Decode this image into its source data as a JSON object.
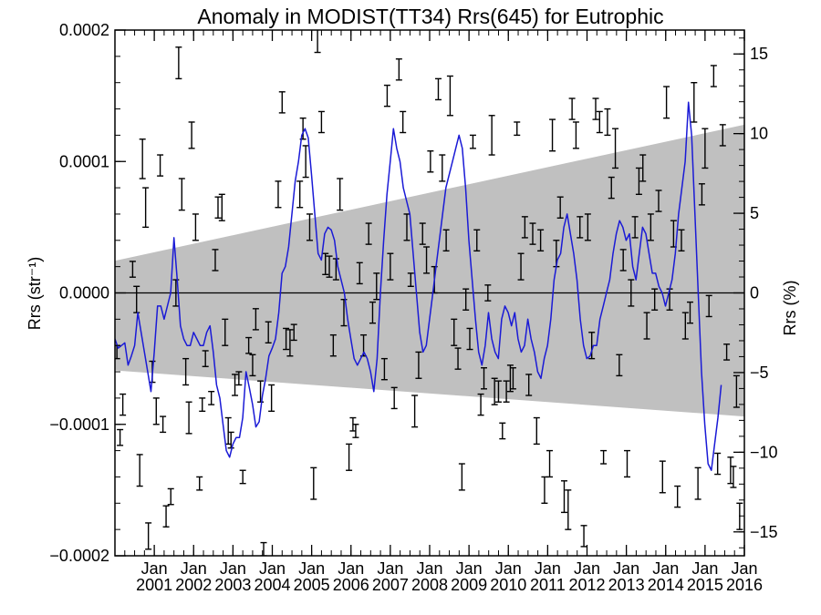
{
  "chart_data": {
    "type": "line",
    "title": "Anomaly in MODIST(TT34) Rrs(645) for Eutrophic",
    "ylabel": "Rrs (str⁻¹)",
    "y2label": "Rrs (%)",
    "xlim": [
      2000.0,
      2016.0
    ],
    "ylim": [
      -0.0002,
      0.0002
    ],
    "y2lim": [
      -16.5,
      16.5
    ],
    "y_ticks": [
      -0.0002,
      -0.0001,
      0.0,
      0.0001,
      0.0002
    ],
    "y_tick_labels": [
      "−0.0002",
      "−0.0001",
      "0.0000",
      "0.0001",
      "0.0002"
    ],
    "y2_ticks": [
      -15,
      -10,
      -5,
      0,
      5,
      10,
      15
    ],
    "y2_tick_labels": [
      "−15",
      "−10",
      "−5",
      "0",
      "5",
      "10",
      "15"
    ],
    "x_ticks": [
      2001.0,
      2002.0,
      2003.0,
      2004.0,
      2005.0,
      2006.0,
      2007.0,
      2008.0,
      2009.0,
      2010.0,
      2011.0,
      2012.0,
      2013.0,
      2014.0,
      2015.0,
      2016.0
    ],
    "x_tick_month_labels": [
      "Jan",
      "Jan",
      "Jan",
      "Jan",
      "Jan",
      "Jan",
      "Jan",
      "Jan",
      "Jan",
      "Jan",
      "Jan",
      "Jan",
      "Jan",
      "Jan",
      "Jan",
      "Jan"
    ],
    "x_tick_year_labels": [
      "2001",
      "2002",
      "2003",
      "2004",
      "2005",
      "2006",
      "2007",
      "2008",
      "2009",
      "2010",
      "2011",
      "2012",
      "2013",
      "2014",
      "2015",
      "2016"
    ],
    "zero_line": 0.0,
    "grid": false,
    "envelope": {
      "color": "#c0c0c0",
      "upper": [
        [
          2000.0,
          2.45e-05
        ],
        [
          2016.0,
          0.000128
        ]
      ],
      "lower": [
        [
          2000.0,
          -5.9e-05
        ],
        [
          2016.0,
          -9.4e-05
        ]
      ]
    },
    "series_line": {
      "color": "#1a1ad6",
      "x_start": 2000.0,
      "x_step": 0.0833,
      "values": [
        -3.5e-05,
        -4.2e-05,
        -4e-05,
        -3.8e-05,
        -5.5e-05,
        -4.8e-05,
        -4e-05,
        -1.5e-05,
        -3e-05,
        -4.5e-05,
        -6e-05,
        -7.5e-05,
        -4.5e-05,
        -1e-05,
        -1e-05,
        -2e-05,
        -1e-05,
        0.0,
        4.2e-05,
        1e-05,
        -2.5e-05,
        -3.5e-05,
        -4e-05,
        -4e-05,
        -3e-05,
        -3.5e-05,
        -4e-05,
        -4e-05,
        -3e-05,
        -2.5e-05,
        -4.5e-05,
        -7e-05,
        -8e-05,
        -0.0001,
        -0.00012,
        -0.000125,
        -0.000115,
        -0.00011,
        -0.00011,
        -9.5e-05,
        -6e-05,
        -7.2e-05,
        -8.5e-05,
        -0.000102,
        -9.8e-05,
        -7.8e-05,
        -6.5e-05,
        -4.8e-05,
        -4.2e-05,
        -3.5e-05,
        -1.5e-05,
        1.5e-05,
        2e-05,
        3.5e-05,
        6e-05,
        8.5e-05,
        0.0001,
        0.00012,
        0.000125,
        0.000118,
        9e-05,
        6e-05,
        3e-05,
        2.5e-05,
        4.5e-05,
        5e-05,
        4.8e-05,
        4e-05,
        2e-05,
        1e-05,
        0.0,
        -2e-05,
        -3.5e-05,
        -5e-05,
        -5.5e-05,
        -5e-05,
        -4.5e-05,
        -5e-05,
        -6e-05,
        -7.5e-05,
        -5e-05,
        0.0,
        4e-05,
        7.5e-05,
        0.0001,
        0.000125,
        0.00011,
        0.0001,
        8e-05,
        7e-05,
        6e-05,
        3e-05,
        0.0,
        -3e-05,
        -4.5e-05,
        -4e-05,
        -2e-05,
        0.0,
        2e-05,
        4e-05,
        6e-05,
        8e-05,
        9e-05,
        0.0001,
        0.00011,
        0.00012,
        0.00011,
        8e-05,
        4e-05,
        1e-05,
        -2e-05,
        -4.5e-05,
        -5.5e-05,
        -4e-05,
        -1.5e-05,
        -3.5e-05,
        -4.5e-05,
        -5e-05,
        -2e-05,
        -1e-05,
        -1.5e-05,
        -2.5e-05,
        -1.5e-05,
        -3.5e-05,
        -4.5e-05,
        -4e-05,
        -2e-05,
        -3.5e-05,
        -4.5e-05,
        -6e-05,
        -6.5e-05,
        -5e-05,
        -4e-05,
        -2e-05,
        1e-05,
        2.5e-05,
        3e-05,
        5e-05,
        6e-05,
        4.5e-05,
        3e-05,
        1e-05,
        -2e-05,
        -4e-05,
        -5e-05,
        -4.8e-05,
        -4e-05,
        -4e-05,
        -2e-05,
        -1e-05,
        0.0,
        1e-05,
        3e-05,
        4.5e-05,
        5.5e-05,
        5e-05,
        4e-05,
        4.5e-05,
        2e-05,
        1e-05,
        3e-05,
        5e-05,
        4.5e-05,
        3e-05,
        1.5e-05,
        1.5e-05,
        5e-06,
        0.0,
        -1e-05,
        0.0,
        1e-05,
        3e-05,
        6e-05,
        8e-05,
        0.0001,
        0.000145,
        0.00012,
        6e-05,
        0.0,
        -6e-05,
        -0.0001,
        -0.00013,
        -0.000135,
        -0.000115,
        -9.5e-05,
        -7e-05
      ]
    },
    "error_bars": {
      "color": "#000000",
      "points": [
        [
          2000.05,
          -4.5e-05,
          5e-06
        ],
        [
          2000.13,
          -0.00011,
          6e-06
        ],
        [
          2000.2,
          -8.5e-05,
          8e-06
        ],
        [
          2000.45,
          1.8e-05,
          6e-06
        ],
        [
          2000.55,
          -5e-06,
          1e-05
        ],
        [
          2000.63,
          -0.000135,
          1.2e-05
        ],
        [
          2000.7,
          0.000102,
          1.5e-05
        ],
        [
          2000.78,
          6.5e-05,
          1.5e-05
        ],
        [
          2000.85,
          -0.000185,
          1e-05
        ],
        [
          2000.95,
          -6e-05,
          8e-06
        ],
        [
          2001.05,
          -9e-05,
          1e-05
        ],
        [
          2001.15,
          9.7e-05,
          8e-06
        ],
        [
          2001.22,
          -0.0001,
          6e-06
        ],
        [
          2001.3,
          -0.00017,
          8e-06
        ],
        [
          2001.42,
          -0.000155,
          6e-06
        ],
        [
          2001.55,
          0.0,
          1e-05
        ],
        [
          2001.62,
          0.000175,
          1.2e-05
        ],
        [
          2001.7,
          7.5e-05,
          1.2e-05
        ],
        [
          2001.8,
          -6e-05,
          1e-05
        ],
        [
          2001.88,
          -9.5e-05,
          1.2e-05
        ],
        [
          2001.95,
          0.00012,
          1e-05
        ],
        [
          2002.05,
          5e-05,
          1e-05
        ],
        [
          2002.15,
          -0.000145,
          5e-06
        ],
        [
          2002.22,
          -8.5e-05,
          5e-06
        ],
        [
          2002.3,
          -5e-05,
          6e-06
        ],
        [
          2002.45,
          -8e-05,
          5e-06
        ],
        [
          2002.55,
          2.5e-05,
          8e-06
        ],
        [
          2002.62,
          6.5e-05,
          8e-06
        ],
        [
          2002.72,
          6.5e-05,
          1e-05
        ],
        [
          2002.8,
          -3e-05,
          1e-05
        ],
        [
          2002.88,
          -0.000105,
          1e-05
        ],
        [
          2002.95,
          -0.000112,
          6e-06
        ],
        [
          2003.05,
          -7e-05,
          8e-06
        ],
        [
          2003.15,
          -6.5e-05,
          5e-06
        ],
        [
          2003.25,
          -0.00014,
          5e-06
        ],
        [
          2003.4,
          -4e-05,
          6e-06
        ],
        [
          2003.5,
          -5.5e-05,
          8e-06
        ],
        [
          2003.58,
          -2e-05,
          8e-06
        ],
        [
          2003.7,
          -7.5e-05,
          8e-06
        ],
        [
          2003.78,
          -0.000195,
          5e-06
        ],
        [
          2003.9,
          -3e-05,
          8e-06
        ],
        [
          2003.98,
          -8e-05,
          1e-05
        ],
        [
          2004.15,
          7.5e-05,
          1e-05
        ],
        [
          2004.25,
          0.000145,
          8e-06
        ],
        [
          2004.35,
          -3.5e-05,
          8e-06
        ],
        [
          2004.45,
          -3.8e-05,
          1e-05
        ],
        [
          2004.55,
          -3e-05,
          6e-06
        ],
        [
          2004.7,
          7.5e-05,
          1e-05
        ],
        [
          2004.78,
          0.000125,
          8e-06
        ],
        [
          2004.85,
          0.0001,
          1.2e-05
        ],
        [
          2004.95,
          5e-05,
          1e-05
        ],
        [
          2005.05,
          -0.000145,
          1.2e-05
        ],
        [
          2005.15,
          0.000195,
          1.2e-05
        ],
        [
          2005.25,
          0.00013,
          8e-06
        ],
        [
          2005.35,
          2.2e-05,
          8e-06
        ],
        [
          2005.45,
          2e-05,
          8e-06
        ],
        [
          2005.55,
          -4e-05,
          8e-06
        ],
        [
          2005.62,
          1.8e-05,
          8e-06
        ],
        [
          2005.72,
          7.5e-05,
          1.2e-05
        ],
        [
          2005.82,
          -1.5e-05,
          1e-05
        ],
        [
          2005.95,
          -0.000125,
          1e-05
        ],
        [
          2006.05,
          -0.0001,
          5e-06
        ],
        [
          2006.12,
          -0.000105,
          5e-06
        ],
        [
          2006.22,
          1.5e-05,
          8e-06
        ],
        [
          2006.32,
          -4e-05,
          8e-06
        ],
        [
          2006.45,
          4.5e-05,
          8e-06
        ],
        [
          2006.55,
          -1.5e-05,
          8e-06
        ],
        [
          2006.65,
          5e-06,
          1e-05
        ],
        [
          2006.75,
          -0.000215,
          1e-05
        ],
        [
          2006.85,
          -5.8e-05,
          8e-06
        ],
        [
          2006.92,
          0.00015,
          8e-06
        ],
        [
          2007.0,
          2e-05,
          1e-05
        ],
        [
          2007.1,
          -8e-05,
          8e-06
        ],
        [
          2007.22,
          0.00017,
          8e-06
        ],
        [
          2007.32,
          0.00013,
          8e-06
        ],
        [
          2007.42,
          5e-05,
          1e-05
        ],
        [
          2007.52,
          1e-05,
          5e-06
        ],
        [
          2007.62,
          -9e-05,
          1.2e-05
        ],
        [
          2007.72,
          -5.5e-05,
          1e-05
        ],
        [
          2007.82,
          4.5e-05,
          8e-06
        ],
        [
          2007.92,
          2.5e-05,
          1e-05
        ],
        [
          2008.02,
          0.0001,
          8e-06
        ],
        [
          2008.12,
          1e-05,
          1e-05
        ],
        [
          2008.22,
          0.000155,
          8e-06
        ],
        [
          2008.32,
          9.5e-05,
          1e-05
        ],
        [
          2008.42,
          4e-05,
          8e-06
        ],
        [
          2008.52,
          0.00015,
          1.5e-05
        ],
        [
          2008.62,
          -3e-05,
          1e-05
        ],
        [
          2008.72,
          -5e-05,
          8e-06
        ],
        [
          2008.82,
          -0.00014,
          1e-05
        ],
        [
          2008.92,
          -5e-06,
          8e-06
        ],
        [
          2009.02,
          -3.5e-05,
          8e-06
        ],
        [
          2009.1,
          0.000115,
          5e-06
        ],
        [
          2009.2,
          4e-05,
          8e-06
        ],
        [
          2009.3,
          -8.5e-05,
          8e-06
        ],
        [
          2009.38,
          -6.5e-05,
          8e-06
        ],
        [
          2009.48,
          0.0,
          6e-06
        ],
        [
          2009.58,
          0.00012,
          1.5e-05
        ],
        [
          2009.65,
          -7.5e-05,
          1e-05
        ],
        [
          2009.75,
          -7.5e-05,
          8e-06
        ],
        [
          2009.85,
          -0.000105,
          6e-06
        ],
        [
          2009.95,
          -7.5e-05,
          8e-06
        ],
        [
          2010.05,
          -6.5e-05,
          1e-05
        ],
        [
          2010.12,
          -6.5e-05,
          8e-06
        ],
        [
          2010.22,
          0.000125,
          5e-06
        ],
        [
          2010.32,
          2e-05,
          1e-05
        ],
        [
          2010.42,
          5e-05,
          8e-06
        ],
        [
          2010.52,
          -7e-05,
          8e-06
        ],
        [
          2010.62,
          4.5e-05,
          8e-06
        ],
        [
          2010.72,
          -0.000105,
          1e-05
        ],
        [
          2010.82,
          4e-05,
          8e-06
        ],
        [
          2010.92,
          -0.00015,
          1e-05
        ],
        [
          2011.05,
          -0.00013,
          1e-05
        ],
        [
          2011.12,
          0.00012,
          1.2e-05
        ],
        [
          2011.22,
          3e-05,
          1e-05
        ],
        [
          2011.32,
          6.5e-05,
          8e-06
        ],
        [
          2011.42,
          -0.000155,
          1.2e-05
        ],
        [
          2011.52,
          -0.000165,
          1.5e-05
        ],
        [
          2011.62,
          0.00014,
          8e-06
        ],
        [
          2011.72,
          0.00012,
          1e-05
        ],
        [
          2011.82,
          5e-05,
          8e-06
        ],
        [
          2011.92,
          -0.000185,
          8e-06
        ],
        [
          2012.02,
          5e-05,
          1e-05
        ],
        [
          2012.12,
          -4e-05,
          1e-05
        ],
        [
          2012.22,
          0.00014,
          8e-06
        ],
        [
          2012.32,
          0.00013,
          8e-06
        ],
        [
          2012.42,
          -0.000125,
          5e-06
        ],
        [
          2012.52,
          0.00013,
          1e-05
        ],
        [
          2012.62,
          8e-05,
          8e-06
        ],
        [
          2012.72,
          0.00011,
          1.5e-05
        ],
        [
          2012.82,
          -5.5e-05,
          8e-06
        ],
        [
          2012.92,
          2.5e-05,
          8e-06
        ],
        [
          2013.02,
          -0.00013,
          1e-05
        ],
        [
          2013.12,
          0.0,
          1e-05
        ],
        [
          2013.22,
          5e-05,
          8e-06
        ],
        [
          2013.32,
          8.5e-05,
          1e-05
        ],
        [
          2013.42,
          9.5e-05,
          1e-05
        ],
        [
          2013.52,
          -2.5e-05,
          1e-05
        ],
        [
          2013.62,
          5e-05,
          1e-05
        ],
        [
          2013.72,
          -5e-06,
          8e-06
        ],
        [
          2013.82,
          7e-05,
          8e-06
        ],
        [
          2013.92,
          -0.00014,
          1.2e-05
        ],
        [
          2014.02,
          0.000145,
          1.2e-05
        ],
        [
          2014.1,
          -5e-06,
          8e-06
        ],
        [
          2014.2,
          4.5e-05,
          1e-05
        ],
        [
          2014.3,
          -0.000155,
          8e-06
        ],
        [
          2014.4,
          4e-05,
          8e-06
        ],
        [
          2014.5,
          -2.5e-05,
          1e-05
        ],
        [
          2014.62,
          -1.5e-05,
          8e-06
        ],
        [
          2014.72,
          0.000145,
          1.5e-05
        ],
        [
          2014.82,
          -0.000145,
          1.2e-05
        ],
        [
          2014.92,
          7.5e-05,
          8e-06
        ],
        [
          2015.0,
          0.00011,
          1.5e-05
        ],
        [
          2015.1,
          -1e-05,
          8e-06
        ],
        [
          2015.22,
          0.000165,
          8e-06
        ],
        [
          2015.32,
          -0.00013,
          8e-06
        ],
        [
          2015.45,
          0.00012,
          8e-06
        ],
        [
          2015.55,
          -4.5e-05,
          6e-06
        ],
        [
          2015.65,
          -0.000135,
          1e-05
        ],
        [
          2015.72,
          -0.00014,
          8e-06
        ],
        [
          2015.8,
          -7.5e-05,
          1.2e-05
        ],
        [
          2015.88,
          -0.00017,
          1e-05
        ]
      ]
    }
  }
}
